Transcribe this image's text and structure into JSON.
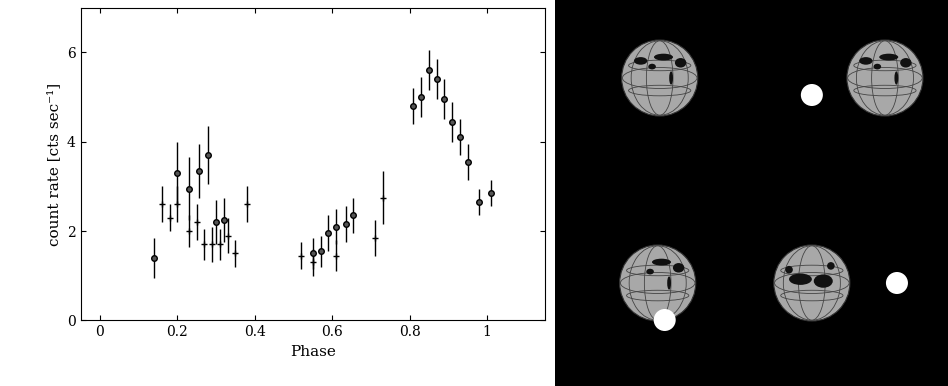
{
  "chart_data": {
    "type": "errorbar",
    "x_label": "Phase",
    "y_label": "count rate [cts sec⁻¹]",
    "xlim": [
      -0.05,
      1.15
    ],
    "xticks": [
      0,
      0.2,
      0.4,
      0.6,
      0.8,
      1
    ],
    "ylim": [
      0,
      7
    ],
    "yticks": [
      0,
      2,
      4,
      6
    ],
    "series": [
      {
        "color": "#000000",
        "marker": "circle",
        "x": [
          0.14,
          0.2,
          0.23,
          0.255,
          0.28,
          0.3,
          0.32,
          0.55,
          0.57,
          0.59,
          0.61,
          0.635,
          0.655,
          0.81,
          0.83,
          0.85,
          0.87,
          0.89,
          0.91,
          0.93,
          0.95,
          0.98,
          1.01
        ],
        "values": [
          1.4,
          3.3,
          2.95,
          3.35,
          3.7,
          2.2,
          2.25,
          1.5,
          1.55,
          1.95,
          2.1,
          2.15,
          2.35,
          4.8,
          5.0,
          5.6,
          5.4,
          4.95,
          4.45,
          4.1,
          3.55,
          2.65,
          2.85
        ],
        "errors": [
          0.45,
          0.7,
          0.7,
          0.6,
          0.65,
          0.5,
          0.5,
          0.35,
          0.35,
          0.4,
          0.4,
          0.4,
          0.4,
          0.4,
          0.45,
          0.45,
          0.45,
          0.45,
          0.45,
          0.4,
          0.4,
          0.3,
          0.3
        ]
      },
      {
        "color": "#000000",
        "marker": "plus",
        "x": [
          0.16,
          0.18,
          0.2,
          0.23,
          0.25,
          0.27,
          0.29,
          0.31,
          0.33,
          0.35,
          0.38,
          0.52,
          0.55,
          0.61,
          0.71,
          0.73
        ],
        "values": [
          2.6,
          2.3,
          2.6,
          2.0,
          2.2,
          1.7,
          1.7,
          1.7,
          1.9,
          1.5,
          2.6,
          1.45,
          1.3,
          1.45,
          1.85,
          2.75
        ],
        "errors": [
          0.4,
          0.3,
          0.4,
          0.35,
          0.4,
          0.35,
          0.4,
          0.35,
          0.4,
          0.3,
          0.4,
          0.3,
          0.3,
          0.35,
          0.4,
          0.6
        ]
      }
    ]
  }
}
